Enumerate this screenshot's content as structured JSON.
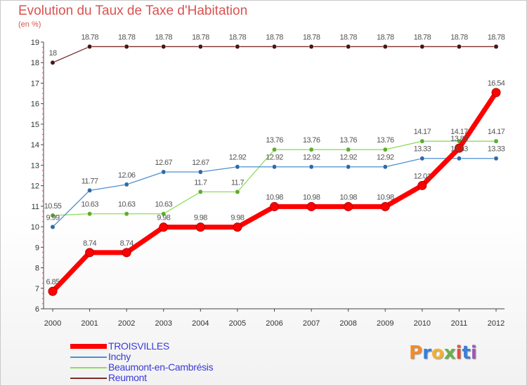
{
  "title": "Evolution du Taux de Taxe d'Habitation",
  "unit_label": "(en %)",
  "brand": {
    "letters": [
      "P",
      "r",
      "o",
      "x",
      "i",
      "t",
      "i"
    ],
    "colors": [
      "#f28c28",
      "#3a7fd5",
      "#f2b134",
      "#6ab04c",
      "#e74c3c",
      "#3a7fd5",
      "#9b59b6"
    ]
  },
  "chart_data": {
    "type": "line",
    "x": [
      2000,
      2001,
      2002,
      2003,
      2004,
      2005,
      2006,
      2007,
      2008,
      2009,
      2010,
      2011,
      2012
    ],
    "ylim": [
      6,
      19
    ],
    "yticks": [
      6,
      7,
      8,
      9,
      10,
      11,
      12,
      13,
      14,
      15,
      16,
      17,
      18,
      19
    ],
    "grid": false,
    "legend_position": "bottom-left",
    "series": [
      {
        "name": "TROISVILLES",
        "color": "#ff0000",
        "values": [
          6.85,
          8.74,
          8.74,
          9.98,
          9.98,
          9.98,
          10.98,
          10.98,
          10.98,
          10.98,
          12.01,
          13.83,
          16.54
        ],
        "labels": [
          "6.85",
          "8.74",
          "8.74",
          "9.98",
          "9.98",
          "9.98",
          "10.98",
          "10.98",
          "10.98",
          "10.98",
          "12.01",
          "13.83",
          "16.54"
        ]
      },
      {
        "name": "Inchy",
        "color": "#4f8fd0",
        "values": [
          9.99,
          11.77,
          12.06,
          12.67,
          12.67,
          12.92,
          12.92,
          12.92,
          12.92,
          12.92,
          13.33,
          13.33,
          13.33
        ],
        "labels": [
          "9.99",
          "11.77",
          "12.06",
          "12.67",
          "12.67",
          "12.92",
          "12.92",
          "12.92",
          "12.92",
          "12.92",
          "13.33",
          "13.33",
          "13.33"
        ]
      },
      {
        "name": "Beaumont-en-Cambrésis",
        "color": "#8fdd5a",
        "values": [
          10.55,
          10.63,
          10.63,
          10.63,
          11.7,
          11.7,
          13.76,
          13.76,
          13.76,
          13.76,
          14.17,
          14.17,
          14.17
        ],
        "labels": [
          "10.55",
          "10.63",
          "10.63",
          "10.63",
          "11.7",
          "11.7",
          "13.76",
          "13.76",
          "13.76",
          "13.76",
          "14.17",
          "14.17",
          "14.17"
        ]
      },
      {
        "name": "Reumont",
        "color": "#7a2e2e",
        "values": [
          18,
          18.78,
          18.78,
          18.78,
          18.78,
          18.78,
          18.78,
          18.78,
          18.78,
          18.78,
          18.78,
          18.78,
          18.78
        ],
        "labels": [
          "18",
          "18.78",
          "18.78",
          "18.78",
          "18.78",
          "18.78",
          "18.78",
          "18.78",
          "18.78",
          "18.78",
          "18.78",
          "18.78",
          "18.78"
        ]
      }
    ]
  }
}
